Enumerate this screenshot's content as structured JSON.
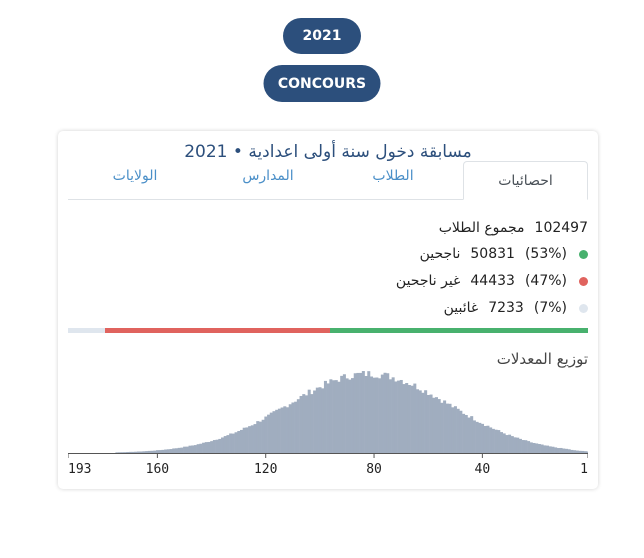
{
  "header": {
    "year": "2021",
    "contest_label": "CONCOURS"
  },
  "card": {
    "title": "مسابقة دخول سنة أولى اعدادية • 2021",
    "tabs": [
      {
        "label": "احصائيات",
        "active": true
      },
      {
        "label": "الطلاب",
        "active": false
      },
      {
        "label": "المدارس",
        "active": false
      },
      {
        "label": "الولايات",
        "active": false
      }
    ]
  },
  "stats": {
    "total_label": "مجموع الطلاب",
    "total_value": "102497",
    "pass_label": "ناجحين",
    "pass_value": "50831",
    "pass_pct": "(53%)",
    "fail_label": "غير ناجحين",
    "fail_value": "44433",
    "fail_pct": "(47%)",
    "absent_label": "غائبين",
    "absent_value": "7233",
    "absent_pct": "(7%)"
  },
  "colors": {
    "pass": "#48b16e",
    "fail": "#e0635e",
    "absent": "#dfe6ee",
    "histogram": "#a0adbf",
    "accent": "#2c4f7c"
  },
  "distribution": {
    "title": "توزيع المعدلات",
    "chart_data": {
      "type": "bar",
      "x_range": [
        193,
        1
      ],
      "tick_labels": [
        "193",
        "160",
        "120",
        "80",
        "40",
        "1"
      ],
      "ticks": [
        193,
        160,
        120,
        80,
        40,
        1
      ],
      "peak_x": 82,
      "peak_height": 80,
      "spread": 30
    }
  }
}
